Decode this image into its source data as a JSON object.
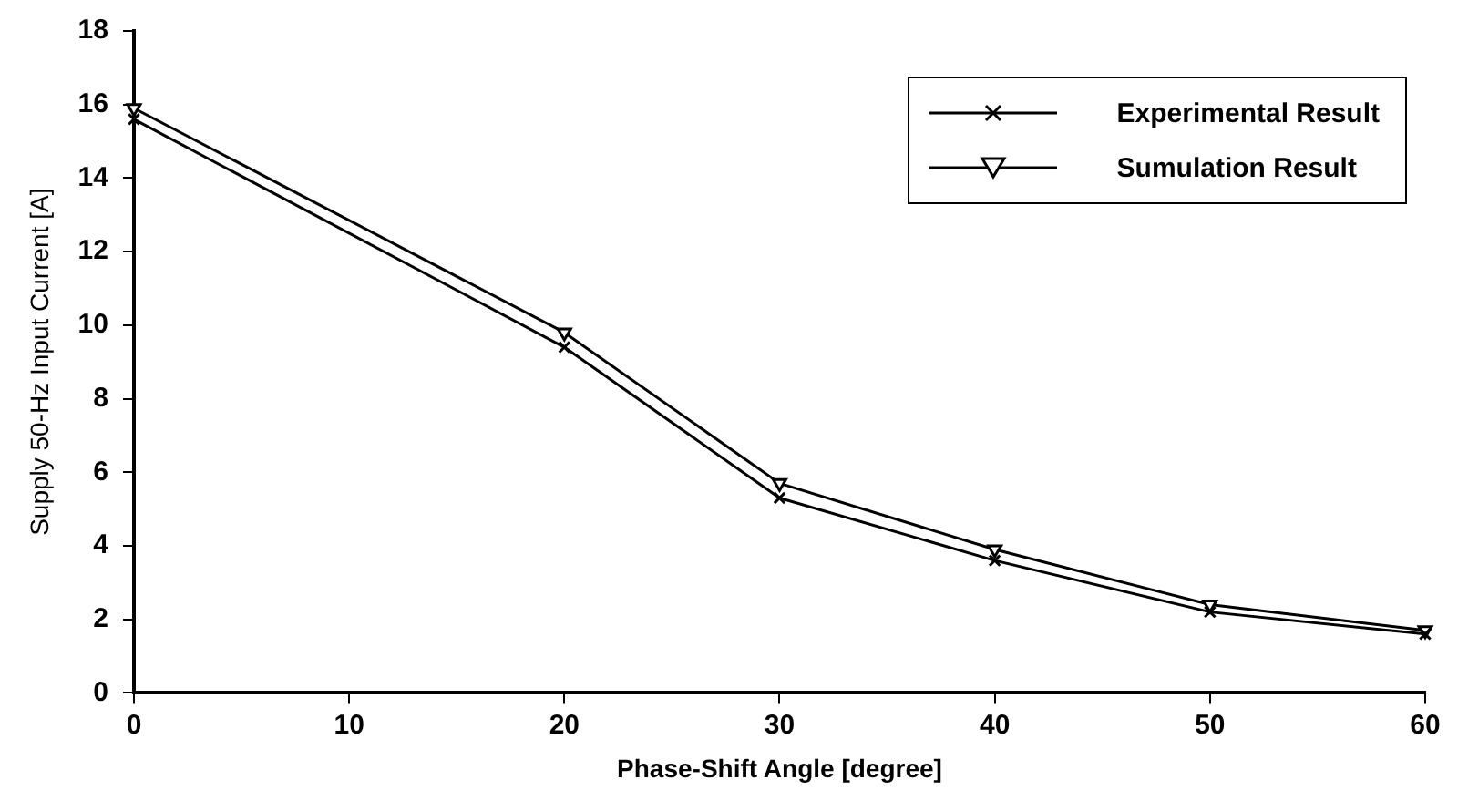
{
  "chart_data": {
    "type": "line",
    "xlabel": "Phase-Shift Angle [degree]",
    "ylabel": "Supply 50-Hz Input Current [A]",
    "x": [
      0,
      20,
      30,
      40,
      50,
      60
    ],
    "series": [
      {
        "name": "Experimental Result",
        "color": "#000000",
        "marker": "cross",
        "values": [
          15.6,
          9.4,
          5.3,
          3.6,
          2.2,
          1.6
        ]
      },
      {
        "name": "Sumulation Result",
        "color": "#000000",
        "marker": "triangle",
        "values": [
          15.9,
          9.8,
          5.7,
          3.9,
          2.4,
          1.7
        ]
      }
    ],
    "xlim": [
      0,
      60
    ],
    "xticks": [
      0,
      10,
      20,
      30,
      40,
      50,
      60
    ],
    "ylim": [
      0,
      18
    ],
    "yticks": [
      0,
      2,
      4,
      6,
      8,
      10,
      12,
      14,
      16,
      18
    ],
    "grid": false,
    "legend": "top right",
    "line_style": "solid"
  }
}
